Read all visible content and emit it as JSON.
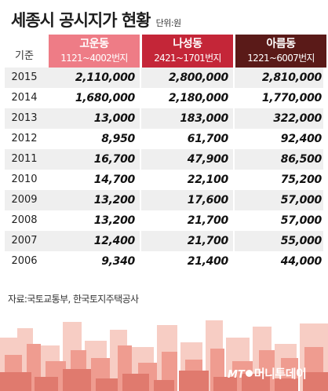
{
  "header": {
    "title": "세종시 공시지가 현황",
    "unit": "단위:원"
  },
  "table": {
    "year_header": "기준",
    "columns": [
      {
        "name": "고운동",
        "range": "1121~4002번지",
        "color": "#ee7c86"
      },
      {
        "name": "나성동",
        "range": "2421~1701번지",
        "color": "#c42638"
      },
      {
        "name": "아름동",
        "range": "1221~6007번지",
        "color": "#5a1a18"
      }
    ],
    "rows": [
      {
        "year": "2015",
        "values": [
          "2,110,000",
          "2,800,000",
          "2,810,000"
        ]
      },
      {
        "year": "2014",
        "values": [
          "1,680,000",
          "2,180,000",
          "1,770,000"
        ]
      },
      {
        "year": "2013",
        "values": [
          "13,000",
          "183,000",
          "322,000"
        ]
      },
      {
        "year": "2012",
        "values": [
          "8,950",
          "61,700",
          "92,400"
        ]
      },
      {
        "year": "2011",
        "values": [
          "16,700",
          "47,900",
          "86,500"
        ]
      },
      {
        "year": "2010",
        "values": [
          "14,700",
          "22,100",
          "75,200"
        ]
      },
      {
        "year": "2009",
        "values": [
          "13,200",
          "17,600",
          "57,000"
        ]
      },
      {
        "year": "2008",
        "values": [
          "13,200",
          "21,700",
          "57,000"
        ]
      },
      {
        "year": "2007",
        "values": [
          "12,400",
          "21,700",
          "55,000"
        ]
      },
      {
        "year": "2006",
        "values": [
          "9,340",
          "21,400",
          "44,000"
        ]
      }
    ]
  },
  "footer": {
    "source": "자료:국토교통부, 한국토지주택공사",
    "logo_prefix": "MT",
    "logo_name": "머니투데이"
  },
  "colors": {
    "skyline_light": "#f7cdc4",
    "skyline_mid": "#ef9c90",
    "skyline_dark": "#e07a6e"
  }
}
